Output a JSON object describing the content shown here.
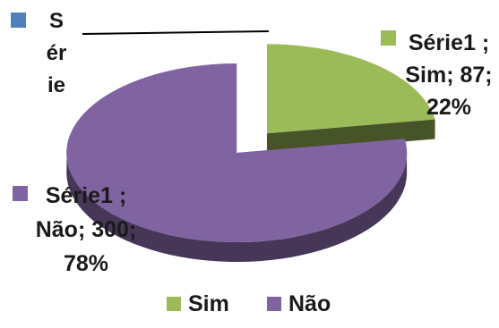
{
  "chart_data": {
    "type": "pie",
    "title": "Série",
    "series": [
      {
        "name": "Série1",
        "categories": [
          "Sim",
          "Não"
        ],
        "values": [
          87,
          300
        ],
        "percentages": [
          "22%",
          "78%"
        ],
        "colors": [
          "#9bbb59",
          "#8064a2"
        ]
      }
    ],
    "data_labels": [
      "Série1 ; Sim; 87; 22%",
      "Série1 ; Não; 300; 78%"
    ],
    "legend": {
      "placement": "bottom",
      "entries": [
        "Sim",
        "Não"
      ]
    },
    "style": "3d-exploded"
  },
  "colors": {
    "series_marker": "#4f81bd",
    "sim": "#9bbb59",
    "nao": "#8064a2"
  }
}
